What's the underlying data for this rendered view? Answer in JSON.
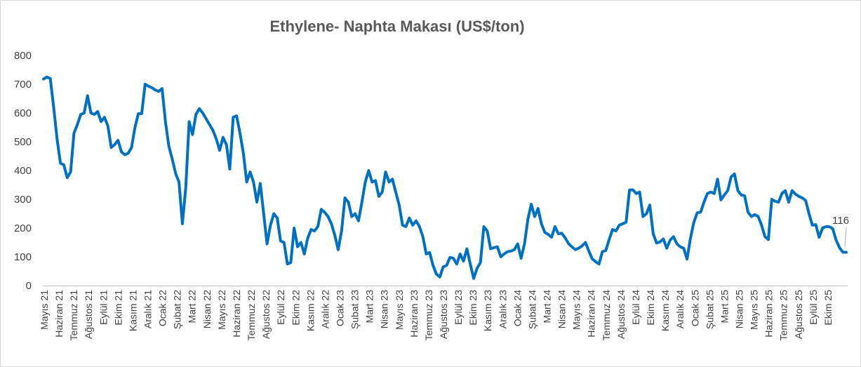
{
  "chart_data": {
    "type": "line",
    "title": "Ethylene- Naphta Makası (US$/ton)",
    "xlabel": "",
    "ylabel": "",
    "ylim": [
      0,
      800
    ],
    "yticks": [
      0,
      100,
      200,
      300,
      400,
      500,
      600,
      700,
      800
    ],
    "grid": false,
    "legend": "none",
    "line_color": "#0070c0",
    "x_tick_labels": [
      "Mayıs 21",
      "Haziran 21",
      "Temmuz 21",
      "Ağustos 21",
      "Eylül 21",
      "Ekim 21",
      "Kasım 21",
      "Aralık 21",
      "Ocak 22",
      "Şubat 22",
      "Mart 22",
      "Nisan 22",
      "Mayıs 22",
      "Haziran 22",
      "Temmuz 22",
      "Ağustos 22",
      "Eylül 22",
      "Ekim 22",
      "Kasım 22",
      "Aralık 22",
      "Ocak 23",
      "Şubat 23",
      "Mart 23",
      "Nisan 23",
      "Mayıs 23",
      "Haziran 23",
      "Temmuz 23",
      "Ağustos 23",
      "Eylül 23",
      "Ekim 23",
      "Kasım 23",
      "Aralık 23",
      "Ocak 24",
      "Şubat 24",
      "Mart 24",
      "Nisan 24",
      "Mayıs 24",
      "Haziran 24",
      "Temmuz 24",
      "Ağustos 24",
      "Eylül 24",
      "Ekim 24",
      "Kasım 24",
      "Aralık 24",
      "Ocak 25",
      "Şubat 25",
      "Mart 25",
      "Nisan 25",
      "Mayıs 25",
      "Haziran 25",
      "Temmuz 25",
      "Ağustos 25",
      "Eylül 25",
      "Ekim 25"
    ],
    "series": [
      {
        "values": [
          718,
          725,
          720,
          620,
          510,
          425,
          420,
          375,
          395,
          530,
          560,
          595,
          600,
          660,
          600,
          595,
          605,
          570,
          585,
          555,
          480,
          490,
          505,
          465,
          455,
          460,
          480,
          550,
          598,
          598,
          700,
          693,
          688,
          680,
          675,
          685,
          570,
          485,
          440,
          390,
          360,
          215,
          340,
          570,
          525,
          595,
          615,
          600,
          580,
          560,
          540,
          510,
          470,
          515,
          490,
          405,
          585,
          590,
          530,
          460,
          360,
          395,
          360,
          290,
          355,
          250,
          145,
          210,
          250,
          235,
          155,
          150,
          75,
          80,
          200,
          135,
          150,
          110,
          165,
          195,
          190,
          205,
          265,
          255,
          240,
          215,
          175,
          125,
          190,
          305,
          290,
          240,
          250,
          225,
          290,
          360,
          400,
          360,
          365,
          310,
          325,
          395,
          360,
          370,
          325,
          280,
          210,
          205,
          235,
          210,
          225,
          205,
          170,
          110,
          115,
          70,
          40,
          30,
          65,
          70,
          98,
          95,
          75,
          110,
          85,
          128,
          75,
          25,
          60,
          80,
          205,
          190,
          128,
          132,
          135,
          100,
          110,
          118,
          120,
          125,
          145,
          95,
          145,
          230,
          283,
          240,
          268,
          215,
          185,
          178,
          168,
          205,
          180,
          182,
          166,
          146,
          135,
          125,
          130,
          138,
          150,
          120,
          93,
          83,
          75,
          118,
          122,
          160,
          195,
          190,
          210,
          215,
          220,
          332,
          333,
          320,
          325,
          240,
          250,
          280,
          180,
          148,
          152,
          162,
          130,
          158,
          170,
          145,
          135,
          130,
          92,
          165,
          220,
          253,
          255,
          290,
          320,
          325,
          320,
          370,
          298,
          315,
          330,
          378,
          388,
          330,
          315,
          312,
          255,
          240,
          247,
          240,
          210,
          170,
          160,
          300,
          293,
          290,
          320,
          330,
          290,
          330,
          318,
          310,
          305,
          296,
          250,
          210,
          212,
          168,
          200,
          205,
          205,
          198,
          158,
          132,
          116,
          116
        ]
      }
    ],
    "annotation": "116"
  }
}
